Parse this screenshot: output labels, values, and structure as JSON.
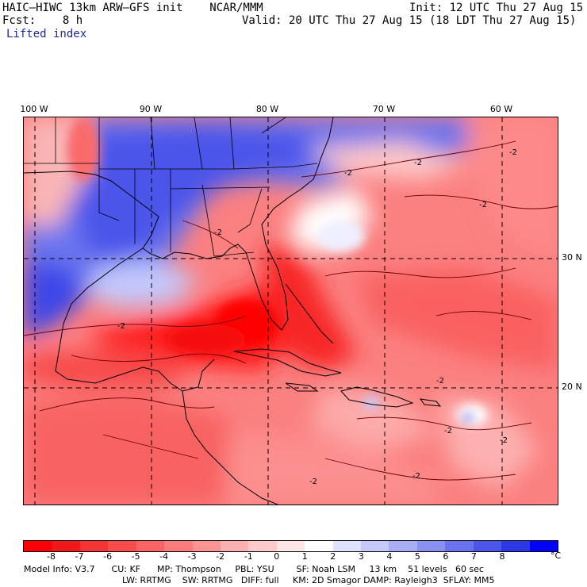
{
  "header": {
    "model_line": "HAIC–HIWC 13km ARW–GFS init    NCAR/MMM",
    "fcst_line": "Fcst:    8 h",
    "field": "Lifted index",
    "init": "Init: 12 UTC Thu 27 Aug 15",
    "valid": "Valid: 20 UTC Thu 27 Aug 15 (18 LDT Thu 27 Aug 15)"
  },
  "map": {
    "longitude_labels": [
      "100 W",
      "90 W",
      "80 W",
      "70 W",
      "60 W"
    ],
    "latitude_labels": [
      "30 N",
      "20 N"
    ],
    "contour_label": "-2"
  },
  "colorbar": {
    "unit": "°C",
    "tick_labels": [
      "-8",
      "-7",
      "-6",
      "-5",
      "-4",
      "-3",
      "-2",
      "-1",
      "0",
      "1",
      "2",
      "3",
      "4",
      "5",
      "6",
      "7",
      "8"
    ],
    "colors": [
      "#ff0000",
      "#f01818",
      "#f53434",
      "#f84c4c",
      "#fa6464",
      "#fc7c7c",
      "#fd9494",
      "#feb0b0",
      "#ffcaca",
      "#ffe6e6",
      "#ffffff",
      "#dfe2ff",
      "#c4c9fb",
      "#a7aef6",
      "#8990f2",
      "#6a72ee",
      "#4c55ea",
      "#2d38e5",
      "#0000ff"
    ]
  },
  "model_info": {
    "line1": "Model Info: V3.7      CU: KF      MP: Thompson     PBL: YSU        SF: Noah LSM     13 km    51 levels   60 sec",
    "line2": "LW: RRTMG    SW: RRTMG   DIFF: full     KM: 2D Smagor DAMP: Rayleigh3  SFLAY: MM5"
  }
}
